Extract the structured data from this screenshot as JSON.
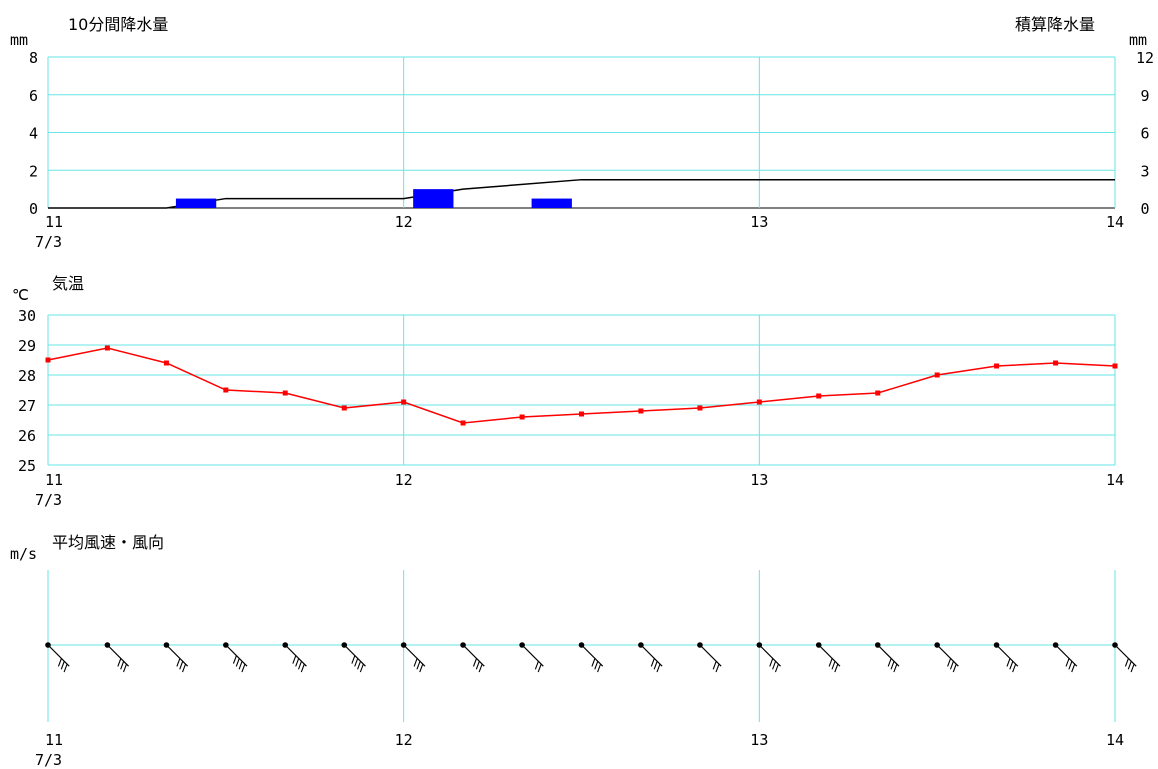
{
  "chart_data": [
    {
      "type": "bar",
      "title": "10分間降水量",
      "ylabel": "mm",
      "ylim": [
        0,
        8
      ],
      "yticks": [
        "8",
        "6",
        "4",
        "2",
        "0"
      ],
      "secondary_title": "積算降水量",
      "secondary_ylabel": "mm",
      "secondary_ylim": [
        0,
        12
      ],
      "secondary_yticks": [
        "12",
        "9",
        "6",
        "3",
        "0"
      ],
      "xlim": [
        11,
        14
      ],
      "x_tick_labels": [
        "11",
        "12",
        "13",
        "14"
      ],
      "date_label": "7/3",
      "grid": true,
      "series": [
        {
          "values_x": [
            11.333,
            12.0,
            12.333
          ],
          "values": [
            0.5,
            1.0,
            0.5
          ],
          "color": "#0000ff"
        }
      ],
      "cumulative": {
        "type": "line",
        "color": "#000000",
        "x": [
          11,
          11.333,
          11.5,
          12.0,
          12.167,
          12.5,
          14.0
        ],
        "values": [
          0,
          0,
          0.75,
          0.75,
          1.5,
          2.25,
          2.25
        ]
      }
    },
    {
      "type": "line",
      "title": "気温",
      "ylabel": "℃",
      "ylim": [
        25,
        30
      ],
      "yticks": [
        "30",
        "29",
        "28",
        "27",
        "26",
        "25"
      ],
      "xlim": [
        11,
        14
      ],
      "x_tick_labels": [
        "11",
        "12",
        "13",
        "14"
      ],
      "date_label": "7/3",
      "grid": true,
      "series": [
        {
          "color": "#ff0000",
          "x": [
            11.0,
            11.167,
            11.333,
            11.5,
            11.667,
            11.833,
            12.0,
            12.167,
            12.333,
            12.5,
            12.667,
            12.833,
            13.0,
            13.167,
            13.333,
            13.5,
            13.667,
            13.833,
            14.0
          ],
          "values": [
            28.5,
            28.9,
            28.4,
            27.5,
            27.4,
            26.9,
            27.1,
            26.4,
            26.6,
            26.7,
            26.8,
            26.9,
            27.1,
            27.3,
            27.4,
            28.0,
            28.3,
            28.4,
            28.3
          ]
        }
      ]
    },
    {
      "type": "scatter",
      "title": "平均風速・風向",
      "ylabel": "m/s",
      "xlim": [
        11,
        14
      ],
      "x_tick_labels": [
        "11",
        "12",
        "13",
        "14"
      ],
      "date_label": "7/3",
      "grid": true,
      "wind_barbs": {
        "x": [
          11.0,
          11.167,
          11.333,
          11.5,
          11.667,
          11.833,
          12.0,
          12.167,
          12.333,
          12.5,
          12.667,
          12.833,
          13.0,
          13.167,
          13.333,
          13.5,
          13.667,
          13.833,
          14.0
        ],
        "direction": "NW",
        "barbs": [
          3,
          3,
          3,
          4,
          4,
          4,
          3,
          3,
          2,
          3,
          3,
          2,
          3,
          3,
          3,
          3,
          3,
          3,
          3
        ]
      }
    }
  ]
}
